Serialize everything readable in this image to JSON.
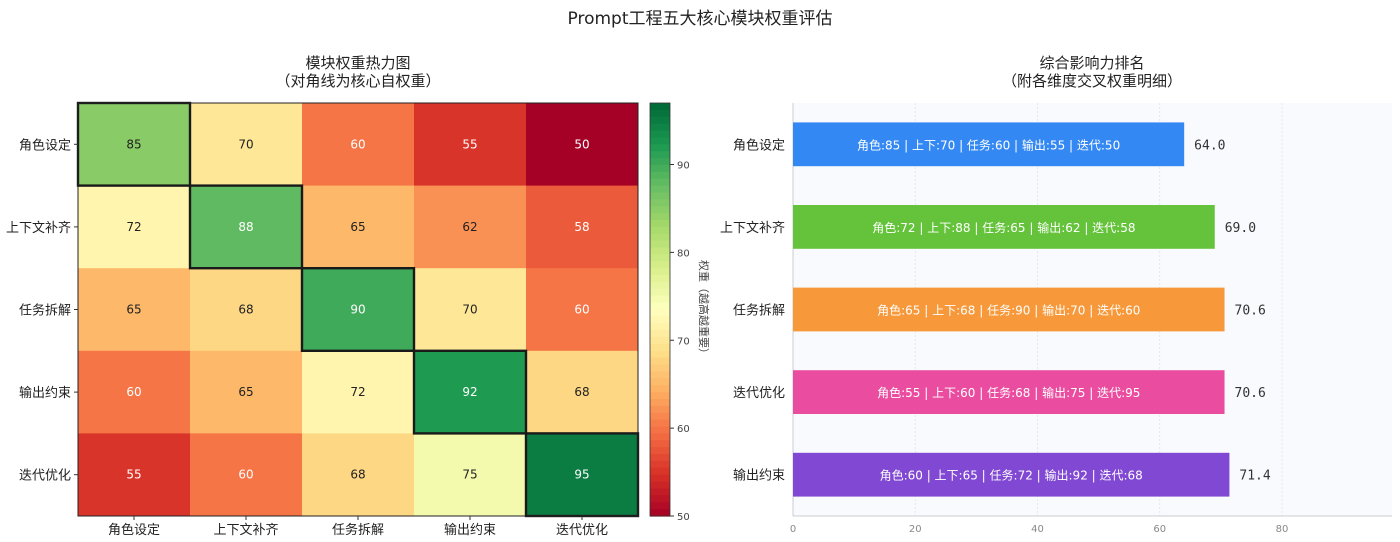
{
  "page_title": "Prompt工程五大核心模块权重评估",
  "chart_data": [
    {
      "type": "heatmap",
      "title": "模块权重热力图",
      "subtitle": "（对角线为核心自权重）",
      "x_categories": [
        "角色设定",
        "上下文补齐",
        "任务拆解",
        "输出约束",
        "迭代优化"
      ],
      "y_categories": [
        "角色设定",
        "上下文补齐",
        "任务拆解",
        "输出约束",
        "迭代优化"
      ],
      "values": [
        [
          85,
          70,
          60,
          55,
          50
        ],
        [
          72,
          88,
          65,
          62,
          58
        ],
        [
          65,
          68,
          90,
          70,
          60
        ],
        [
          60,
          65,
          72,
          92,
          68
        ],
        [
          55,
          60,
          68,
          75,
          95
        ]
      ],
      "colorbar": {
        "label": "权重（越高越重要）",
        "ticks": [
          50,
          60,
          70,
          80,
          90
        ],
        "range": [
          50,
          97
        ],
        "colormap": "RdYlGn"
      },
      "diagonal_highlight": true
    },
    {
      "type": "bar",
      "orientation": "horizontal",
      "title": "综合影响力排名",
      "subtitle": "（附各维度交叉权重明细）",
      "categories": [
        "角色设定",
        "上下文补齐",
        "任务拆解",
        "迭代优化",
        "输出约束"
      ],
      "values": [
        64.0,
        69.0,
        70.6,
        70.6,
        71.4
      ],
      "value_labels": [
        "64.0",
        "69.0",
        "70.6",
        "70.6",
        "71.4"
      ],
      "bar_details": [
        "角色:85 | 上下:70 | 任务:60 | 输出:55 | 迭代:50",
        "角色:72 | 上下:88 | 任务:65 | 输出:62 | 迭代:58",
        "角色:65 | 上下:68 | 任务:90 | 输出:70 | 迭代:60",
        "角色:55 | 上下:60 | 任务:68 | 输出:75 | 迭代:95",
        "角色:60 | 上下:65 | 任务:72 | 输出:92 | 迭代:68"
      ],
      "colors": [
        "#3388f4",
        "#64c33a",
        "#f7993a",
        "#ea4da0",
        "#8048d3"
      ],
      "x_ticks": [
        0,
        20,
        40,
        60,
        80
      ],
      "xlim": [
        0,
        98
      ],
      "grid": true
    }
  ]
}
